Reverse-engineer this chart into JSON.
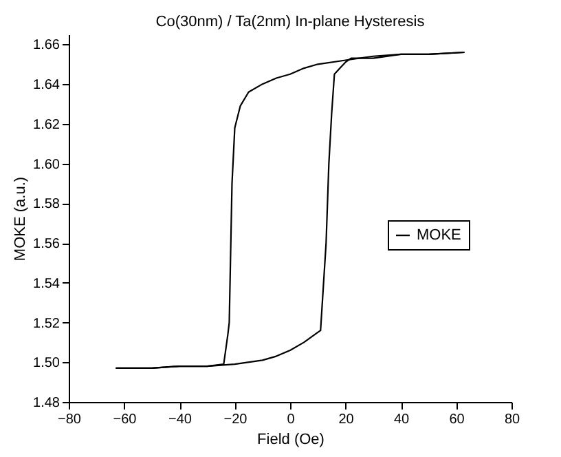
{
  "chart_data": {
    "type": "line",
    "title": "Co(30nm) / Ta(2nm) In-plane Hysteresis",
    "xlabel": "Field (Oe)",
    "ylabel": "MOKE (a.u.)",
    "series": [
      {
        "name": "MOKE",
        "color": "#000000",
        "x": [
          -63,
          -50,
          -40,
          -30,
          -20,
          -10,
          -5,
          0,
          5,
          10,
          11,
          13,
          14,
          15,
          16,
          18,
          20,
          22,
          30,
          40,
          50,
          63
        ],
        "values": [
          1.497,
          1.497,
          1.498,
          1.498,
          1.499,
          1.501,
          1.503,
          1.506,
          1.51,
          1.515,
          1.516,
          1.56,
          1.6,
          1.625,
          1.645,
          1.648,
          1.651,
          1.653,
          1.653,
          1.655,
          1.655,
          1.656
        ]
      },
      {
        "color": "#000000",
        "x": [
          63,
          50,
          40,
          30,
          20,
          10,
          5,
          0,
          -5,
          -10,
          -15,
          -18,
          -20,
          -21,
          -22,
          -22.5,
          -24,
          -30,
          -40,
          -50,
          -60,
          -63
        ],
        "values": [
          1.656,
          1.655,
          1.655,
          1.654,
          1.652,
          1.65,
          1.648,
          1.645,
          1.643,
          1.64,
          1.636,
          1.629,
          1.618,
          1.59,
          1.52,
          1.514,
          1.499,
          1.498,
          1.498,
          1.497,
          1.497,
          1.497
        ]
      }
    ],
    "xlim": [
      -80,
      80
    ],
    "xticks": [
      -80,
      -60,
      -40,
      -20,
      0,
      20,
      40,
      60,
      80
    ],
    "ylim": [
      1.48,
      1.665
    ],
    "yticks": [
      {
        "value": 1.48,
        "label": "1.48"
      },
      {
        "value": 1.5,
        "label": "1.50"
      },
      {
        "value": 1.52,
        "label": "1.52"
      },
      {
        "value": 1.54,
        "label": "1.54"
      },
      {
        "value": 1.56,
        "label": "1.56"
      },
      {
        "value": 1.58,
        "label": "1.58"
      },
      {
        "value": 1.6,
        "label": "1.60"
      },
      {
        "value": 1.62,
        "label": "1.62"
      },
      {
        "value": 1.64,
        "label": "1.64"
      },
      {
        "value": 1.66,
        "label": "1.66"
      }
    ],
    "legend": "right",
    "grid": false,
    "marker": "none",
    "line_style": "solid"
  }
}
